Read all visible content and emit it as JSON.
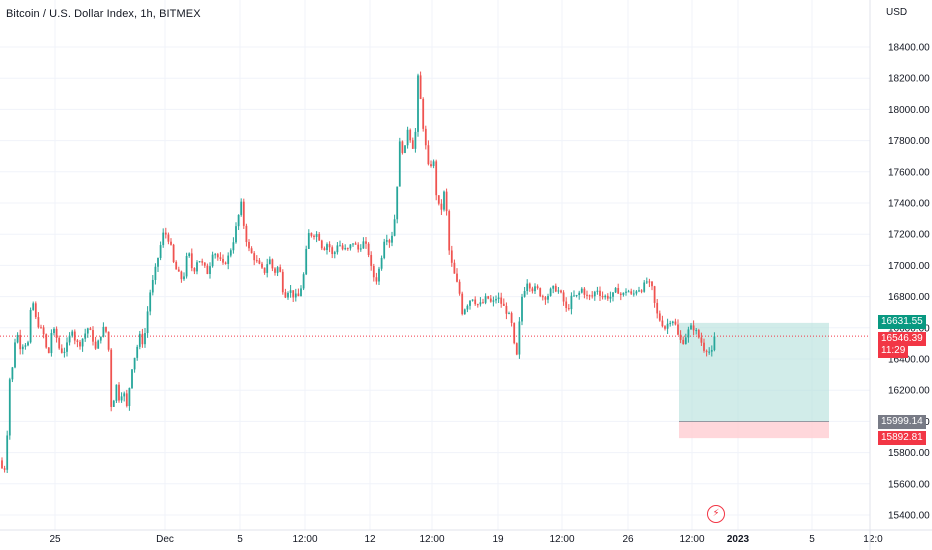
{
  "header": {
    "title": "Bitcoin / U.S. Dollar Index, 1h, BITMEX",
    "currency": "USD"
  },
  "colors": {
    "up": "#26a69a",
    "down": "#ef5350",
    "profit_zone": "#b2dfdb",
    "loss_zone": "#ffcdd2",
    "grid": "#f0f3fa"
  },
  "icons": {
    "alert": "lightning-icon"
  },
  "price_labels": {
    "take_profit": "16631.55",
    "last_price": "16546.39",
    "countdown": "11:29",
    "entry": "15999.14",
    "stop_loss": "15892.81"
  },
  "chart_data": {
    "type": "candlestick",
    "title": "Bitcoin / U.S. Dollar Index, 1h, BITMEX",
    "ylim": [
      15400,
      18500
    ],
    "y_ticks": [
      "18400.00",
      "18200.00",
      "18000.00",
      "17800.00",
      "17600.00",
      "17400.00",
      "17200.00",
      "17000.00",
      "16800.00",
      "16600.00",
      "16400.00",
      "16200.00",
      "16000.00",
      "15800.00",
      "15600.00",
      "15400.00"
    ],
    "x_ticks": [
      "25",
      "Dec",
      "5",
      "12:00",
      "12",
      "12:00",
      "19",
      "12:00",
      "26",
      "12:00",
      "2023",
      "5",
      "12:0"
    ],
    "grid": true,
    "price_path": [
      [
        0,
        15750
      ],
      [
        2,
        15700
      ],
      [
        4,
        15650
      ],
      [
        7,
        15900
      ],
      [
        10,
        16300
      ],
      [
        13,
        16350
      ],
      [
        16,
        16600
      ],
      [
        20,
        16480
      ],
      [
        24,
        16500
      ],
      [
        28,
        16500
      ],
      [
        32,
        16800
      ],
      [
        36,
        16650
      ],
      [
        40,
        16600
      ],
      [
        44,
        16550
      ],
      [
        48,
        16400
      ],
      [
        52,
        16600
      ],
      [
        56,
        16550
      ],
      [
        60,
        16450
      ],
      [
        64,
        16450
      ],
      [
        68,
        16500
      ],
      [
        72,
        16600
      ],
      [
        76,
        16500
      ],
      [
        80,
        16500
      ],
      [
        84,
        16550
      ],
      [
        88,
        16600
      ],
      [
        92,
        16550
      ],
      [
        96,
        16450
      ],
      [
        100,
        16550
      ],
      [
        104,
        16600
      ],
      [
        108,
        16550
      ],
      [
        111,
        16100
      ],
      [
        114,
        16150
      ],
      [
        117,
        16250
      ],
      [
        120,
        16100
      ],
      [
        123,
        16250
      ],
      [
        126,
        16050
      ],
      [
        129,
        16200
      ],
      [
        132,
        16350
      ],
      [
        136,
        16450
      ],
      [
        140,
        16550
      ],
      [
        143,
        16500
      ],
      [
        146,
        16600
      ],
      [
        149,
        16800
      ],
      [
        153,
        16900
      ],
      [
        158,
        17050
      ],
      [
        163,
        17200
      ],
      [
        166,
        17200
      ],
      [
        170,
        17150
      ],
      [
        174,
        17000
      ],
      [
        178,
        16950
      ],
      [
        183,
        16900
      ],
      [
        188,
        17100
      ],
      [
        193,
        16950
      ],
      [
        198,
        17050
      ],
      [
        203,
        17000
      ],
      [
        208,
        16950
      ],
      [
        213,
        17100
      ],
      [
        218,
        17050
      ],
      [
        223,
        17000
      ],
      [
        228,
        17050
      ],
      [
        233,
        17150
      ],
      [
        238,
        17300
      ],
      [
        241,
        17400
      ],
      [
        245,
        17200
      ],
      [
        249,
        17100
      ],
      [
        254,
        17050
      ],
      [
        259,
        17000
      ],
      [
        264,
        16950
      ],
      [
        269,
        17050
      ],
      [
        274,
        16950
      ],
      [
        279,
        17000
      ],
      [
        284,
        16800
      ],
      [
        289,
        16850
      ],
      [
        294,
        16800
      ],
      [
        299,
        16800
      ],
      [
        304,
        16950
      ],
      [
        308,
        17200
      ],
      [
        313,
        17200
      ],
      [
        318,
        17200
      ],
      [
        323,
        17100
      ],
      [
        328,
        17150
      ],
      [
        333,
        17050
      ],
      [
        338,
        17150
      ],
      [
        343,
        17100
      ],
      [
        348,
        17100
      ],
      [
        353,
        17150
      ],
      [
        358,
        17100
      ],
      [
        363,
        17150
      ],
      [
        368,
        17100
      ],
      [
        372,
        16950
      ],
      [
        376,
        16900
      ],
      [
        380,
        17000
      ],
      [
        385,
        17200
      ],
      [
        390,
        17150
      ],
      [
        394,
        17250
      ],
      [
        397,
        17500
      ],
      [
        400,
        17800
      ],
      [
        404,
        17700
      ],
      [
        408,
        17900
      ],
      [
        412,
        17750
      ],
      [
        415,
        17800
      ],
      [
        418,
        18200
      ],
      [
        420,
        18100
      ],
      [
        423,
        17900
      ],
      [
        426,
        17750
      ],
      [
        429,
        17600
      ],
      [
        433,
        17700
      ],
      [
        437,
        17400
      ],
      [
        441,
        17350
      ],
      [
        445,
        17500
      ],
      [
        449,
        17100
      ],
      [
        452,
        17000
      ],
      [
        456,
        16900
      ],
      [
        459,
        16850
      ],
      [
        462,
        16700
      ],
      [
        467,
        16750
      ],
      [
        472,
        16800
      ],
      [
        477,
        16750
      ],
      [
        482,
        16750
      ],
      [
        487,
        16800
      ],
      [
        492,
        16750
      ],
      [
        497,
        16800
      ],
      [
        502,
        16750
      ],
      [
        507,
        16700
      ],
      [
        511,
        16650
      ],
      [
        514,
        16500
      ],
      [
        516,
        16350
      ],
      [
        519,
        16600
      ],
      [
        522,
        16800
      ],
      [
        527,
        16900
      ],
      [
        532,
        16850
      ],
      [
        537,
        16850
      ],
      [
        542,
        16800
      ],
      [
        547,
        16800
      ],
      [
        552,
        16850
      ],
      [
        557,
        16850
      ],
      [
        562,
        16800
      ],
      [
        567,
        16700
      ],
      [
        572,
        16800
      ],
      [
        577,
        16800
      ],
      [
        582,
        16850
      ],
      [
        587,
        16800
      ],
      [
        592,
        16800
      ],
      [
        597,
        16850
      ],
      [
        602,
        16800
      ],
      [
        607,
        16800
      ],
      [
        612,
        16800
      ],
      [
        617,
        16850
      ],
      [
        622,
        16800
      ],
      [
        627,
        16850
      ],
      [
        632,
        16800
      ],
      [
        637,
        16850
      ],
      [
        642,
        16850
      ],
      [
        647,
        16900
      ],
      [
        652,
        16850
      ],
      [
        656,
        16700
      ],
      [
        660,
        16650
      ],
      [
        665,
        16600
      ],
      [
        670,
        16650
      ],
      [
        674,
        16650
      ],
      [
        678,
        16550
      ],
      [
        682,
        16500
      ],
      [
        686,
        16550
      ],
      [
        690,
        16600
      ],
      [
        694,
        16600
      ],
      [
        698,
        16550
      ],
      [
        702,
        16500
      ],
      [
        705,
        16450
      ],
      [
        708,
        16480
      ],
      [
        711,
        16400
      ],
      [
        713,
        16500
      ],
      [
        715,
        16546
      ]
    ],
    "position": {
      "entry": 15999.14,
      "take_profit": 16631.55,
      "stop_loss": 15892.81
    },
    "last_price": 16546.39
  }
}
